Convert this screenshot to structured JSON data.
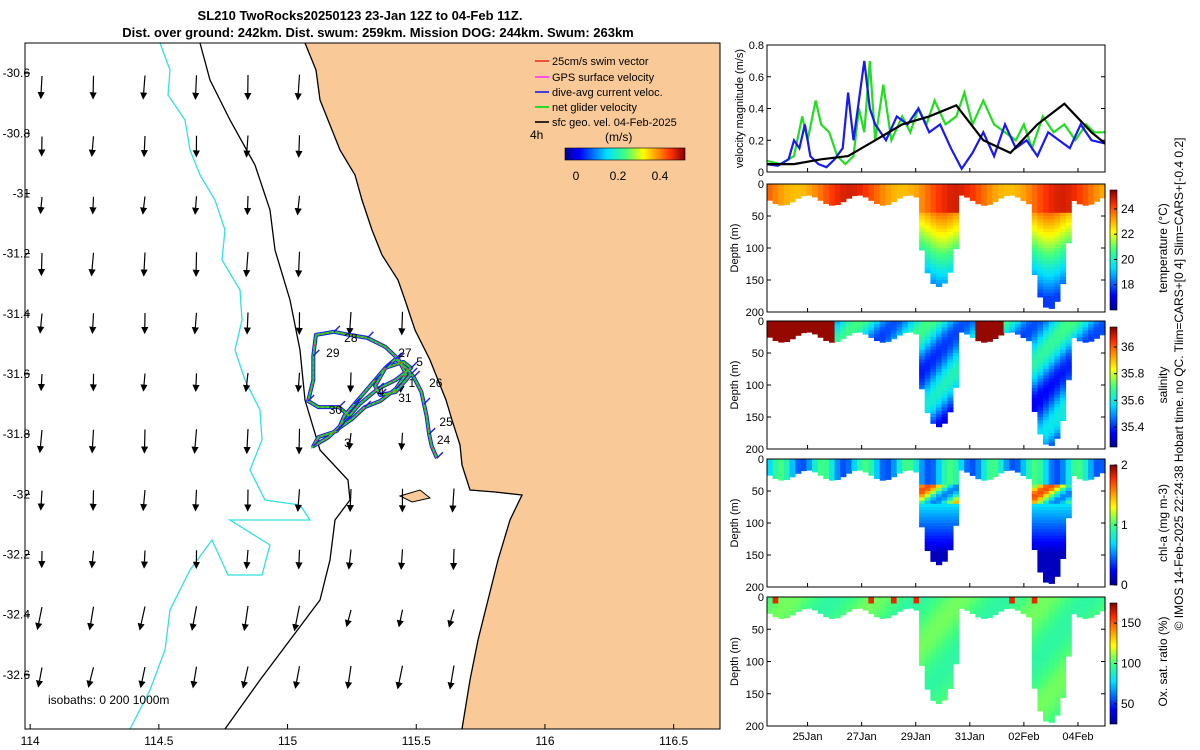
{
  "header": {
    "line1": "SL210 TwoRocks20250123 23-Jan 12Z to 04-Feb 11Z.",
    "line2": "Dist. over ground: 242km. Dist. swum: 259km. Mission DOG: 244km. Swum: 263km"
  },
  "side_caption": "© IMOS 14-Feb-2025 22:24:38 Hobart time. no QC. Tlim=CARS+[0 4] Slim=CARS+[-0.4 0.2]",
  "colors": {
    "land": "#f9c998",
    "sea": "#ffffff",
    "isobath_0": "#000000",
    "isobath_200": "#000000",
    "isobath_1000": "#33e0e0",
    "swim_vector": "#e8341c",
    "gps_velocity": "#ff33ff",
    "dive_avg_velocity": "#1a1aee",
    "net_glider_velocity": "#22dd22",
    "geo_velocity": "#000000"
  },
  "chart_data": [
    {
      "type": "map",
      "xlim": [
        113.98,
        116.68
      ],
      "ylim": [
        -32.78,
        -30.5
      ],
      "xticks": [
        114,
        114.5,
        115,
        115.5,
        116,
        116.5
      ],
      "xtick_labels": [
        "114",
        "114.5",
        "115",
        "115.5",
        "116",
        "116.5"
      ],
      "yticks": [
        -30.6,
        -30.8,
        -31,
        -31.2,
        -31.4,
        -31.6,
        -31.8,
        -32,
        -32.2,
        -32.4,
        -32.6
      ],
      "ytick_labels": [
        "-30.6",
        "-30.8",
        "-31",
        "-31.2",
        "-31.4",
        "-31.6",
        "-31.8",
        "-32",
        "-32.2",
        "-32.4",
        "-32.6"
      ],
      "legend": [
        {
          "label": "25cm/s swim vector",
          "icon": "swim_vector"
        },
        {
          "label": "GPS surface velocity",
          "icon": "gps_velocity"
        },
        {
          "label": "dive-avg current veloc.",
          "icon": "dive_avg_velocity"
        },
        {
          "label": "net glider velocity",
          "icon": "net_glider_velocity"
        },
        {
          "label": "sfc geo. vel. 04-Feb-2025",
          "icon": "geo_velocity"
        }
      ],
      "legend_extra": {
        "interval_label": "4h",
        "colorbar_label": "(m/s)",
        "colorbar_ticks": [
          0,
          0.2,
          0.4
        ],
        "colorbar_tick_labels": [
          "0",
          "0.2",
          "0.4"
        ]
      },
      "isobath_label": "isobaths: 0   200  1000m",
      "track": [
        [
          115.58,
          -31.88
        ],
        [
          115.56,
          -31.84
        ],
        [
          115.55,
          -31.8
        ],
        [
          115.54,
          -31.74
        ],
        [
          115.53,
          -31.7
        ],
        [
          115.52,
          -31.66
        ],
        [
          115.49,
          -31.61
        ],
        [
          115.46,
          -31.58
        ],
        [
          115.42,
          -31.55
        ],
        [
          115.38,
          -31.58
        ],
        [
          115.34,
          -31.62
        ],
        [
          115.3,
          -31.66
        ],
        [
          115.26,
          -31.7
        ],
        [
          115.22,
          -31.74
        ],
        [
          115.2,
          -31.78
        ],
        [
          115.25,
          -31.75
        ],
        [
          115.3,
          -31.71
        ],
        [
          115.36,
          -31.69
        ],
        [
          115.42,
          -31.65
        ],
        [
          115.46,
          -31.6
        ],
        [
          115.43,
          -31.55
        ],
        [
          115.38,
          -31.51
        ],
        [
          115.31,
          -31.48
        ],
        [
          115.24,
          -31.47
        ],
        [
          115.18,
          -31.46
        ],
        [
          115.11,
          -31.47
        ],
        [
          115.1,
          -31.54
        ],
        [
          115.1,
          -31.62
        ],
        [
          115.08,
          -31.69
        ],
        [
          115.12,
          -31.71
        ],
        [
          115.2,
          -31.71
        ],
        [
          115.24,
          -31.74
        ],
        [
          115.19,
          -31.79
        ],
        [
          115.12,
          -31.81
        ],
        [
          115.1,
          -31.84
        ],
        [
          115.16,
          -31.81
        ],
        [
          115.22,
          -31.76
        ],
        [
          115.28,
          -31.7
        ],
        [
          115.35,
          -31.65
        ],
        [
          115.42,
          -31.62
        ],
        [
          115.48,
          -31.58
        ],
        [
          115.45,
          -31.56
        ],
        [
          115.38,
          -31.58
        ],
        [
          115.34,
          -31.64
        ],
        [
          115.36,
          -31.67
        ],
        [
          115.42,
          -31.66
        ],
        [
          115.48,
          -31.6
        ]
      ],
      "day_labels": [
        {
          "text": "24",
          "lon": 115.58,
          "lat": -31.82
        },
        {
          "text": "25",
          "lon": 115.59,
          "lat": -31.76
        },
        {
          "text": "26",
          "lon": 115.55,
          "lat": -31.63
        },
        {
          "text": "5",
          "lon": 115.5,
          "lat": -31.56
        },
        {
          "text": "27",
          "lon": 115.43,
          "lat": -31.53
        },
        {
          "text": "28",
          "lon": 115.22,
          "lat": -31.48
        },
        {
          "text": "29",
          "lon": 115.15,
          "lat": -31.53
        },
        {
          "text": "1",
          "lon": 115.47,
          "lat": -31.63
        },
        {
          "text": "4",
          "lon": 115.35,
          "lat": -31.66
        },
        {
          "text": "31",
          "lon": 115.43,
          "lat": -31.68
        },
        {
          "text": "30",
          "lon": 115.16,
          "lat": -31.72
        },
        {
          "text": "3",
          "lon": 115.22,
          "lat": -31.83
        }
      ]
    },
    {
      "type": "line",
      "ylabel": "velocity magnitude (m/s)",
      "xlim": [
        0,
        12.5
      ],
      "ylim": [
        0,
        0.8
      ],
      "yticks": [
        0,
        0.2,
        0.4,
        0.6,
        0.8
      ],
      "ytick_labels": [
        "0",
        "0.2",
        "0.4",
        "0.6",
        "0.8"
      ],
      "x_date_ticks": [
        1.5,
        3.5,
        5.5,
        7.5,
        9.5,
        11.5
      ],
      "series": [
        {
          "color": "#22dd22",
          "x": [
            0,
            0.5,
            1,
            1.3,
            1.5,
            1.8,
            2,
            2.3,
            2.6,
            2.9,
            3.2,
            3.4,
            3.6,
            3.8,
            4,
            4.3,
            4.6,
            5,
            5.3,
            5.6,
            5.9,
            6.2,
            6.6,
            7,
            7.3,
            7.6,
            8,
            8.4,
            8.8,
            9.2,
            9.5,
            9.8,
            10.2,
            10.6,
            11,
            11.4,
            11.8,
            12.1,
            12.5
          ],
          "y": [
            0.07,
            0.05,
            0.1,
            0.35,
            0.2,
            0.45,
            0.3,
            0.25,
            0.1,
            0.05,
            0.1,
            0.4,
            0.25,
            0.7,
            0.2,
            0.55,
            0.2,
            0.35,
            0.25,
            0.4,
            0.3,
            0.45,
            0.3,
            0.35,
            0.5,
            0.3,
            0.45,
            0.3,
            0.25,
            0.2,
            0.3,
            0.15,
            0.35,
            0.25,
            0.3,
            0.2,
            0.3,
            0.25,
            0.25
          ]
        },
        {
          "color": "#1a1aee",
          "x": [
            0,
            0.4,
            0.8,
            1,
            1.2,
            1.4,
            1.6,
            1.9,
            2.2,
            2.5,
            2.8,
            3,
            3.2,
            3.4,
            3.6,
            3.8,
            4,
            4.4,
            4.8,
            5.2,
            5.6,
            6,
            6.4,
            6.8,
            7.2,
            7.6,
            8,
            8.4,
            8.8,
            9.2,
            9.6,
            10,
            10.4,
            10.8,
            11.2,
            11.6,
            12,
            12.5
          ],
          "y": [
            0.05,
            0.04,
            0.08,
            0.2,
            0.15,
            0.3,
            0.1,
            0.05,
            0.03,
            0.08,
            0.15,
            0.5,
            0.2,
            0.45,
            0.7,
            0.4,
            0.3,
            0.2,
            0.35,
            0.3,
            0.4,
            0.25,
            0.3,
            0.15,
            0.02,
            0.12,
            0.25,
            0.1,
            0.3,
            0.15,
            0.2,
            0.1,
            0.25,
            0.2,
            0.15,
            0.3,
            0.2,
            0.18
          ]
        },
        {
          "color": "#000000",
          "x": [
            0,
            1,
            2,
            3,
            4,
            5,
            6,
            7,
            8,
            9,
            10,
            11,
            12,
            12.5
          ],
          "y": [
            0.05,
            0.05,
            0.08,
            0.1,
            0.2,
            0.3,
            0.35,
            0.42,
            0.2,
            0.12,
            0.3,
            0.43,
            0.25,
            0.18
          ]
        }
      ]
    },
    {
      "type": "heatmap",
      "ylabel": "Depth (m)",
      "clabel": "temperature (°C)",
      "ylim": [
        200,
        0
      ],
      "yticks": [
        0,
        50,
        100,
        150,
        200
      ],
      "ytick_labels": [
        "0",
        "50",
        "100",
        "150",
        "200"
      ],
      "clim": [
        16,
        25.5
      ],
      "cticks": [
        18,
        20,
        22,
        24
      ],
      "ctick_labels": [
        "18",
        "20",
        "22",
        "24"
      ],
      "dives": [
        {
          "x": [
            5.6,
            7.1
          ],
          "bottom": 160
        },
        {
          "x": [
            9.7,
            11.2
          ],
          "bottom": 195
        }
      ]
    },
    {
      "type": "heatmap",
      "ylabel": "Depth (m)",
      "clabel": "salinity",
      "ylim": [
        200,
        0
      ],
      "yticks": [
        0,
        50,
        100,
        150,
        200
      ],
      "ytick_labels": [
        "0",
        "50",
        "100",
        "150",
        "200"
      ],
      "clim": [
        35.25,
        36.15
      ],
      "cticks": [
        35.4,
        35.6,
        35.8,
        36
      ],
      "ctick_labels": [
        "35.4",
        "35.6",
        "35.8",
        "36"
      ],
      "dives": [
        {
          "x": [
            5.6,
            7.1
          ],
          "bottom": 165
        },
        {
          "x": [
            9.7,
            11.2
          ],
          "bottom": 195
        }
      ]
    },
    {
      "type": "heatmap",
      "ylabel": "Depth (m)",
      "clabel": "chl-a (mg m-3)",
      "ylim": [
        200,
        0
      ],
      "yticks": [
        0,
        50,
        100,
        150,
        200
      ],
      "ytick_labels": [
        "0",
        "50",
        "100",
        "150",
        "200"
      ],
      "clim": [
        0,
        2
      ],
      "cticks": [
        0,
        1,
        2
      ],
      "ctick_labels": [
        "0",
        "1",
        "2"
      ],
      "dives": [
        {
          "x": [
            5.6,
            7.1
          ],
          "bottom": 165
        },
        {
          "x": [
            9.7,
            11.2
          ],
          "bottom": 195
        }
      ]
    },
    {
      "type": "heatmap",
      "ylabel": "Depth (m)",
      "clabel": "Ox. sat. ratio (%)",
      "ylim": [
        200,
        0
      ],
      "yticks": [
        0,
        50,
        100,
        150,
        200
      ],
      "ytick_labels": [
        "0",
        "50",
        "100",
        "150",
        "200"
      ],
      "clim": [
        25,
        175
      ],
      "cticks": [
        50,
        100,
        150
      ],
      "ctick_labels": [
        "50",
        "100",
        "150"
      ],
      "xticks": [
        1.5,
        3.5,
        5.5,
        7.5,
        9.5,
        11.5
      ],
      "xtick_labels": [
        "25Jan",
        "27Jan",
        "29Jan",
        "31Jan",
        "02Feb",
        "04Feb"
      ],
      "dives": [
        {
          "x": [
            5.6,
            7.1
          ],
          "bottom": 165
        },
        {
          "x": [
            9.7,
            11.2
          ],
          "bottom": 195
        }
      ]
    }
  ]
}
